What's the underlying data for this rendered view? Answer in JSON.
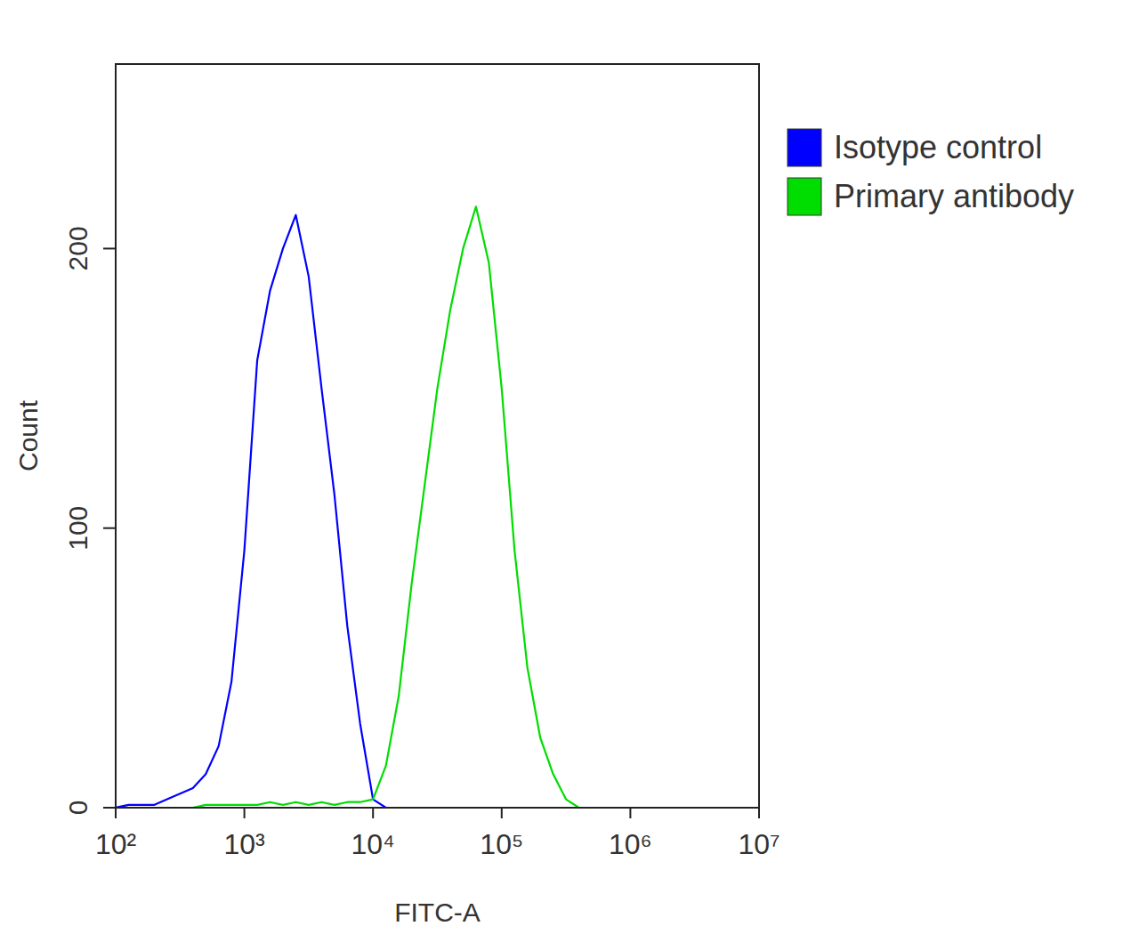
{
  "chart_data": {
    "type": "line",
    "x_label": "FITC-A",
    "y_label": "Count",
    "log": "x",
    "legend": "right",
    "grid": false,
    "xlim": [
      100,
      10000000
    ],
    "xticks": [
      {
        "value": 100,
        "label": "10²"
      },
      {
        "value": 1000,
        "label": "10³"
      },
      {
        "value": 10000,
        "label": "10⁴"
      },
      {
        "value": 100000,
        "label": "10⁵"
      },
      {
        "value": 1000000,
        "label": "10⁶"
      },
      {
        "value": 10000000,
        "label": "10⁷"
      }
    ],
    "ylim": [
      0,
      266
    ],
    "yticks": [
      0,
      100,
      200
    ],
    "x": [
      100,
      126,
      158,
      200,
      251,
      316,
      398,
      501,
      631,
      794,
      1000,
      1259,
      1585,
      1995,
      2512,
      3162,
      3981,
      5012,
      6310,
      7943,
      10000,
      12589,
      15849,
      19953,
      25119,
      31623,
      39811,
      50119,
      63096,
      79433,
      100000,
      125893,
      158489,
      199526,
      251189,
      316228,
      398107,
      501187,
      630957,
      794328,
      1000000
    ],
    "series": [
      {
        "name": "Isotype control",
        "color": "#0000ff",
        "values": [
          0,
          1,
          1,
          1,
          3,
          5,
          7,
          12,
          22,
          45,
          92,
          160,
          185,
          200,
          212,
          190,
          150,
          112,
          65,
          30,
          3,
          0,
          0,
          0,
          0,
          0,
          0,
          0,
          0,
          0,
          0,
          0,
          0,
          0,
          0,
          0,
          0,
          0,
          0,
          0,
          0
        ]
      },
      {
        "name": "Primary antibody",
        "color": "#00dd00",
        "values": [
          0,
          0,
          0,
          0,
          0,
          0,
          0,
          1,
          1,
          1,
          1,
          1,
          2,
          1,
          2,
          1,
          2,
          1,
          2,
          2,
          3,
          15,
          40,
          80,
          115,
          150,
          178,
          200,
          215,
          195,
          150,
          92,
          50,
          25,
          12,
          3,
          0,
          0,
          0,
          0,
          0
        ]
      }
    ]
  }
}
